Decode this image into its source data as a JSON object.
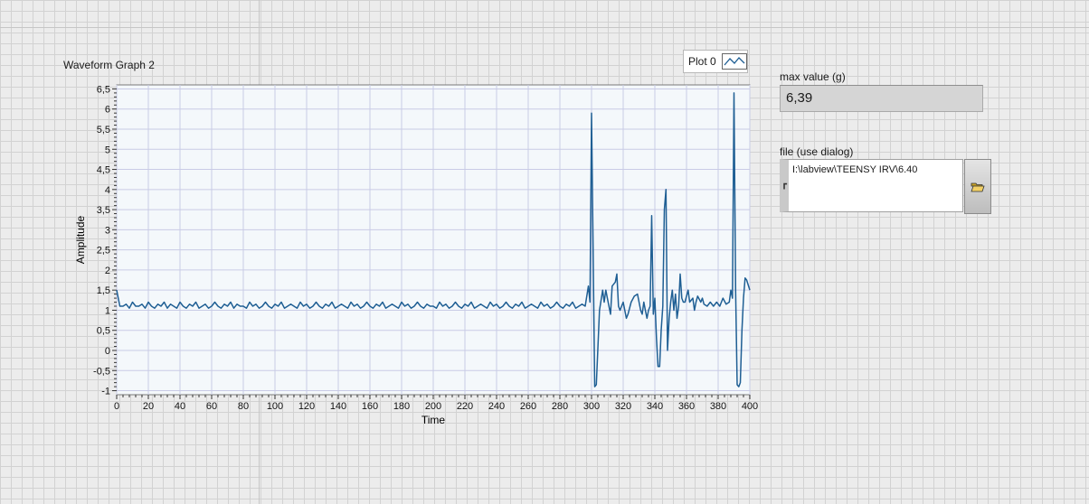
{
  "graph": {
    "title": "Waveform Graph 2",
    "legend_label": "Plot 0"
  },
  "indicator": {
    "label": "max value (g)",
    "value": "6,39"
  },
  "file_path": {
    "label": "file (use dialog)",
    "value": "I:\\labview\\TEENSY IRV\\6.40"
  },
  "colors": {
    "plot_line": "#1f5f94",
    "plot_background": "#f4f8fb",
    "grid": "#c9cbe6"
  },
  "chart_data": {
    "type": "line",
    "xlabel": "Time",
    "ylabel": "Amplitude",
    "xlim": [
      0,
      400
    ],
    "ylim": [
      -1.1,
      6.6
    ],
    "x_ticks": [
      "0",
      "20",
      "40",
      "60",
      "80",
      "100",
      "120",
      "140",
      "160",
      "180",
      "200",
      "220",
      "240",
      "260",
      "280",
      "300",
      "320",
      "340",
      "360",
      "380",
      "400"
    ],
    "y_ticks": [
      "6,5",
      "6",
      "5,5",
      "5",
      "4,5",
      "4",
      "3,5",
      "3",
      "2,5",
      "2",
      "1,5",
      "1",
      "0,5",
      "0",
      "-0,5",
      "-1"
    ],
    "y_tick_values": [
      6.5,
      6,
      5.5,
      5,
      4.5,
      4,
      3.5,
      3,
      2.5,
      2,
      1.5,
      1,
      0.5,
      0,
      -0.5,
      -1
    ],
    "grid": true,
    "series": [
      {
        "name": "Plot 0",
        "points": [
          [
            0,
            1.5
          ],
          [
            2,
            1.1
          ],
          [
            4,
            1.1
          ],
          [
            6,
            1.15
          ],
          [
            8,
            1.05
          ],
          [
            10,
            1.2
          ],
          [
            12,
            1.1
          ],
          [
            14,
            1.1
          ],
          [
            16,
            1.15
          ],
          [
            18,
            1.05
          ],
          [
            20,
            1.2
          ],
          [
            22,
            1.1
          ],
          [
            24,
            1.05
          ],
          [
            26,
            1.15
          ],
          [
            28,
            1.1
          ],
          [
            30,
            1.2
          ],
          [
            32,
            1.05
          ],
          [
            34,
            1.15
          ],
          [
            36,
            1.1
          ],
          [
            38,
            1.05
          ],
          [
            40,
            1.2
          ],
          [
            42,
            1.1
          ],
          [
            44,
            1.05
          ],
          [
            46,
            1.15
          ],
          [
            48,
            1.1
          ],
          [
            50,
            1.2
          ],
          [
            52,
            1.05
          ],
          [
            54,
            1.1
          ],
          [
            56,
            1.15
          ],
          [
            58,
            1.05
          ],
          [
            60,
            1.1
          ],
          [
            62,
            1.2
          ],
          [
            64,
            1.1
          ],
          [
            66,
            1.05
          ],
          [
            68,
            1.15
          ],
          [
            70,
            1.1
          ],
          [
            72,
            1.2
          ],
          [
            74,
            1.05
          ],
          [
            76,
            1.15
          ],
          [
            78,
            1.1
          ],
          [
            80,
            1.1
          ],
          [
            82,
            1.05
          ],
          [
            84,
            1.2
          ],
          [
            86,
            1.1
          ],
          [
            88,
            1.15
          ],
          [
            90,
            1.05
          ],
          [
            92,
            1.1
          ],
          [
            94,
            1.2
          ],
          [
            96,
            1.1
          ],
          [
            98,
            1.05
          ],
          [
            100,
            1.15
          ],
          [
            102,
            1.1
          ],
          [
            104,
            1.2
          ],
          [
            106,
            1.05
          ],
          [
            108,
            1.1
          ],
          [
            110,
            1.15
          ],
          [
            112,
            1.1
          ],
          [
            114,
            1.05
          ],
          [
            116,
            1.2
          ],
          [
            118,
            1.1
          ],
          [
            120,
            1.15
          ],
          [
            122,
            1.05
          ],
          [
            124,
            1.1
          ],
          [
            126,
            1.2
          ],
          [
            128,
            1.1
          ],
          [
            130,
            1.05
          ],
          [
            132,
            1.15
          ],
          [
            134,
            1.1
          ],
          [
            136,
            1.2
          ],
          [
            138,
            1.05
          ],
          [
            140,
            1.1
          ],
          [
            142,
            1.15
          ],
          [
            144,
            1.1
          ],
          [
            146,
            1.05
          ],
          [
            148,
            1.2
          ],
          [
            150,
            1.1
          ],
          [
            152,
            1.15
          ],
          [
            154,
            1.05
          ],
          [
            156,
            1.1
          ],
          [
            158,
            1.2
          ],
          [
            160,
            1.1
          ],
          [
            162,
            1.05
          ],
          [
            164,
            1.15
          ],
          [
            166,
            1.1
          ],
          [
            168,
            1.2
          ],
          [
            170,
            1.05
          ],
          [
            172,
            1.1
          ],
          [
            174,
            1.15
          ],
          [
            176,
            1.1
          ],
          [
            178,
            1.05
          ],
          [
            180,
            1.2
          ],
          [
            182,
            1.1
          ],
          [
            184,
            1.15
          ],
          [
            186,
            1.05
          ],
          [
            188,
            1.1
          ],
          [
            190,
            1.2
          ],
          [
            192,
            1.1
          ],
          [
            194,
            1.05
          ],
          [
            196,
            1.15
          ],
          [
            198,
            1.1
          ],
          [
            200,
            1.1
          ],
          [
            202,
            1.05
          ],
          [
            204,
            1.2
          ],
          [
            206,
            1.1
          ],
          [
            208,
            1.15
          ],
          [
            210,
            1.05
          ],
          [
            212,
            1.1
          ],
          [
            214,
            1.2
          ],
          [
            216,
            1.1
          ],
          [
            218,
            1.05
          ],
          [
            220,
            1.15
          ],
          [
            222,
            1.1
          ],
          [
            224,
            1.2
          ],
          [
            226,
            1.05
          ],
          [
            228,
            1.1
          ],
          [
            230,
            1.15
          ],
          [
            232,
            1.1
          ],
          [
            234,
            1.05
          ],
          [
            236,
            1.2
          ],
          [
            238,
            1.1
          ],
          [
            240,
            1.15
          ],
          [
            242,
            1.05
          ],
          [
            244,
            1.1
          ],
          [
            246,
            1.2
          ],
          [
            248,
            1.1
          ],
          [
            250,
            1.05
          ],
          [
            252,
            1.15
          ],
          [
            254,
            1.1
          ],
          [
            256,
            1.2
          ],
          [
            258,
            1.05
          ],
          [
            260,
            1.1
          ],
          [
            262,
            1.15
          ],
          [
            264,
            1.1
          ],
          [
            266,
            1.05
          ],
          [
            268,
            1.2
          ],
          [
            270,
            1.1
          ],
          [
            272,
            1.15
          ],
          [
            274,
            1.05
          ],
          [
            276,
            1.1
          ],
          [
            278,
            1.2
          ],
          [
            280,
            1.1
          ],
          [
            282,
            1.05
          ],
          [
            284,
            1.15
          ],
          [
            286,
            1.1
          ],
          [
            288,
            1.2
          ],
          [
            290,
            1.05
          ],
          [
            292,
            1.1
          ],
          [
            294,
            1.15
          ],
          [
            296,
            1.1
          ],
          [
            298,
            1.6
          ],
          [
            299,
            1.2
          ],
          [
            300,
            5.9
          ],
          [
            302,
            -0.9
          ],
          [
            303,
            -0.85
          ],
          [
            305,
            1.0
          ],
          [
            307,
            1.5
          ],
          [
            308,
            1.2
          ],
          [
            309,
            1.5
          ],
          [
            310,
            1.3
          ],
          [
            312,
            0.9
          ],
          [
            313,
            1.6
          ],
          [
            315,
            1.7
          ],
          [
            316,
            1.9
          ],
          [
            317,
            1.1
          ],
          [
            318,
            1.0
          ],
          [
            320,
            1.2
          ],
          [
            322,
            0.8
          ],
          [
            323,
            0.9
          ],
          [
            325,
            1.2
          ],
          [
            327,
            1.35
          ],
          [
            329,
            1.4
          ],
          [
            331,
            1.0
          ],
          [
            332,
            0.9
          ],
          [
            333,
            1.2
          ],
          [
            334,
            1.0
          ],
          [
            335,
            0.8
          ],
          [
            336,
            1.0
          ],
          [
            337,
            1.1
          ],
          [
            338,
            3.35
          ],
          [
            339,
            0.9
          ],
          [
            340,
            1.3
          ],
          [
            341,
            0.3
          ],
          [
            342,
            -0.4
          ],
          [
            343,
            -0.4
          ],
          [
            344,
            0.5
          ],
          [
            345,
            1.1
          ],
          [
            346,
            3.5
          ],
          [
            347,
            4.0
          ],
          [
            348,
            0.0
          ],
          [
            349,
            0.8
          ],
          [
            350,
            1.2
          ],
          [
            351,
            1.5
          ],
          [
            352,
            1.0
          ],
          [
            353,
            1.4
          ],
          [
            354,
            0.8
          ],
          [
            355,
            1.1
          ],
          [
            356,
            1.9
          ],
          [
            357,
            1.3
          ],
          [
            358,
            1.2
          ],
          [
            359,
            1.2
          ],
          [
            361,
            1.5
          ],
          [
            362,
            1.2
          ],
          [
            364,
            1.3
          ],
          [
            365,
            1.0
          ],
          [
            366,
            1.2
          ],
          [
            367,
            1.35
          ],
          [
            369,
            1.2
          ],
          [
            370,
            1.3
          ],
          [
            371,
            1.15
          ],
          [
            373,
            1.1
          ],
          [
            375,
            1.2
          ],
          [
            377,
            1.1
          ],
          [
            379,
            1.2
          ],
          [
            381,
            1.1
          ],
          [
            383,
            1.3
          ],
          [
            385,
            1.15
          ],
          [
            387,
            1.2
          ],
          [
            388,
            1.5
          ],
          [
            389,
            1.3
          ],
          [
            390,
            6.4
          ],
          [
            391,
            1.5
          ],
          [
            392,
            -0.85
          ],
          [
            393,
            -0.9
          ],
          [
            394,
            -0.8
          ],
          [
            395,
            0.5
          ],
          [
            396,
            1.3
          ],
          [
            397,
            1.8
          ],
          [
            398,
            1.75
          ],
          [
            400,
            1.5
          ]
        ]
      }
    ]
  }
}
